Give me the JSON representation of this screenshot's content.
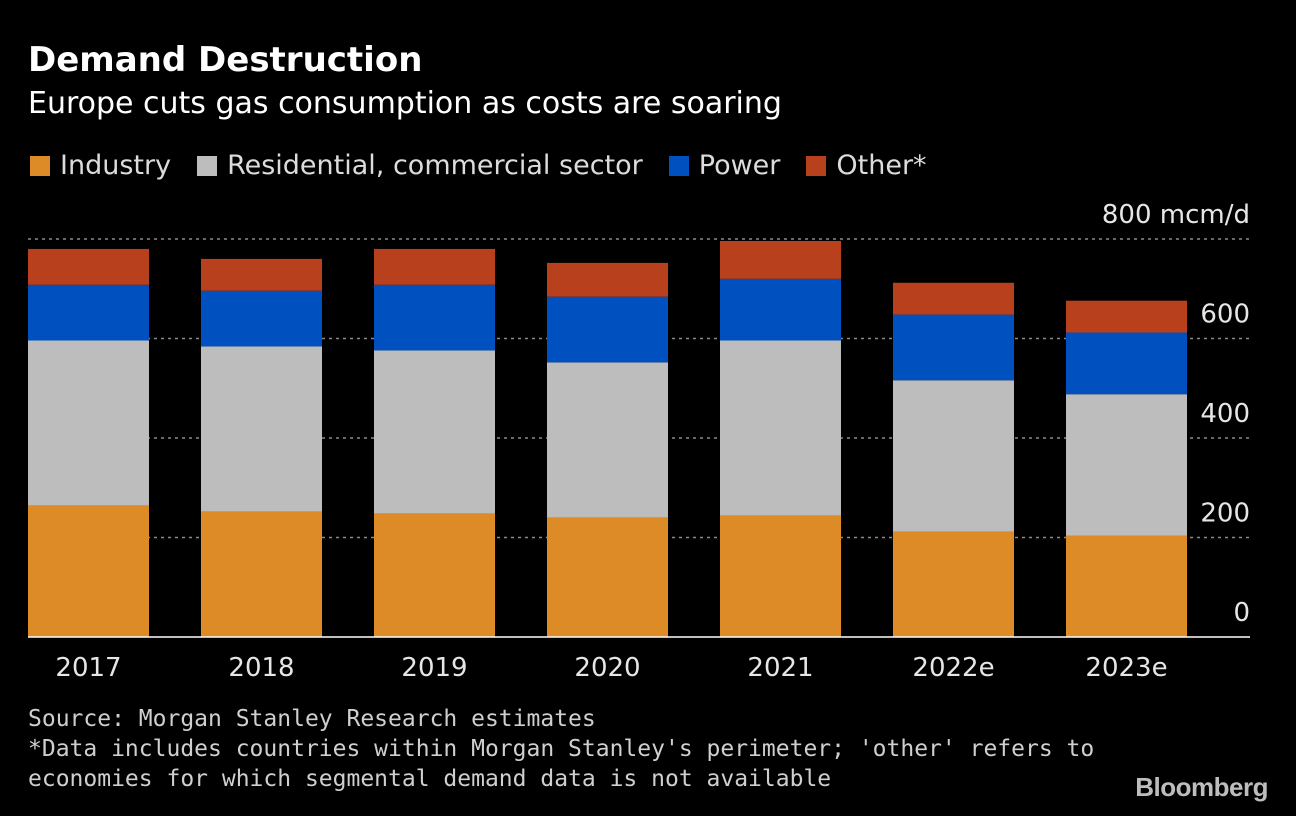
{
  "header": {
    "title": "Demand Destruction",
    "subtitle": "Europe cuts gas consumption as costs are soaring"
  },
  "legend": [
    {
      "label": "Industry",
      "color": "#dc8b27"
    },
    {
      "label": "Residential, commercial sector",
      "color": "#bdbdbd"
    },
    {
      "label": "Power",
      "color": "#0050c0"
    },
    {
      "label": "Other*",
      "color": "#b8401c"
    }
  ],
  "footer": {
    "source": "Source: Morgan Stanley Research estimates",
    "note_line1": "*Data includes countries within Morgan Stanley's perimeter; 'other' refers to",
    "note_line2": "economies for which segmental demand data is not available",
    "brand": "Bloomberg"
  },
  "chart_data": {
    "type": "bar",
    "stacked": true,
    "title": "Demand Destruction",
    "subtitle": "Europe cuts gas consumption as costs are soaring",
    "xlabel": "",
    "ylabel": "mcm/d",
    "unit_label": "800 mcm/d",
    "ylim": [
      0,
      800
    ],
    "yticks": [
      0,
      200,
      400,
      600,
      800
    ],
    "ytick_labels": [
      "0",
      "200",
      "400",
      "600",
      "800 mcm/d"
    ],
    "grid": true,
    "legend_position": "top",
    "categories": [
      "2017",
      "2018",
      "2019",
      "2020",
      "2021",
      "2022e",
      "2023e"
    ],
    "series": [
      {
        "name": "Industry",
        "color": "#dc8b27",
        "values": [
          264,
          252,
          248,
          240,
          244,
          212,
          204
        ]
      },
      {
        "name": "Residential, commercial sector",
        "color": "#bdbdbd",
        "values": [
          332,
          332,
          328,
          312,
          352,
          304,
          284
        ]
      },
      {
        "name": "Power",
        "color": "#0050c0",
        "values": [
          112,
          112,
          132,
          132,
          124,
          132,
          124
        ]
      },
      {
        "name": "Other*",
        "color": "#b8401c",
        "values": [
          72,
          64,
          72,
          68,
          76,
          64,
          64
        ]
      }
    ]
  }
}
